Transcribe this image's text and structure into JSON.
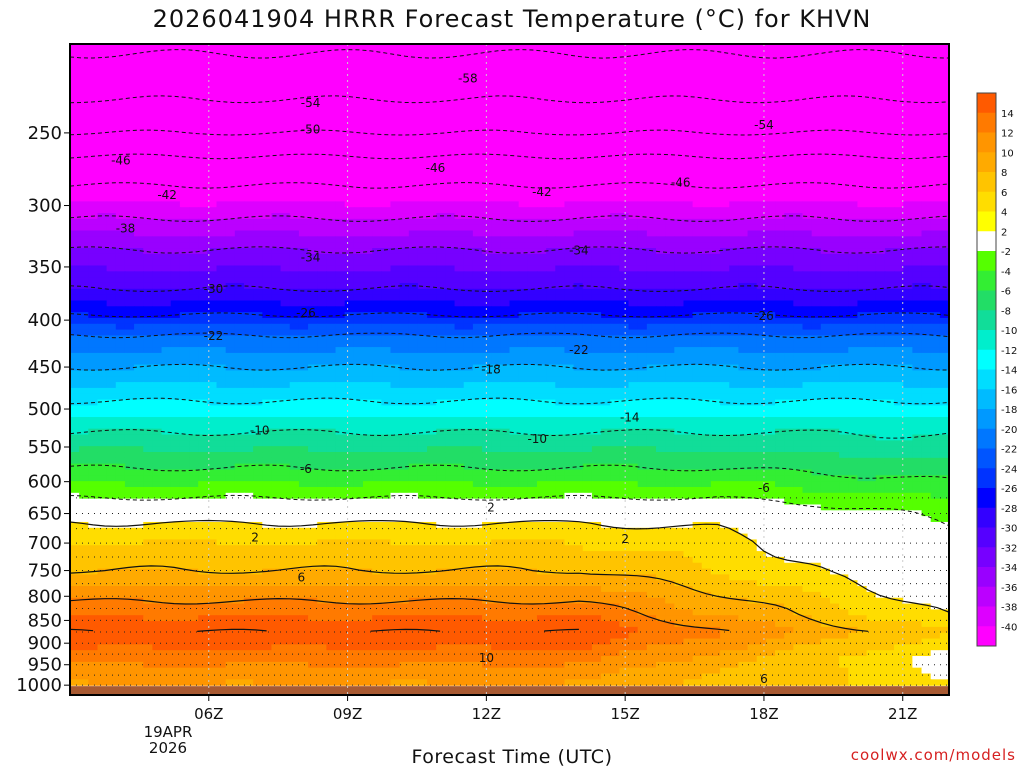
{
  "chart_data": {
    "type": "heatmap",
    "title": "2026041904 HRRR Forecast Temperature (°C) for KHVN",
    "xlabel": "Forecast Time (UTC)",
    "credit": "coolwx.com/models",
    "date_lines": [
      "19APR",
      "2026"
    ],
    "x_ticks": [
      "06Z",
      "09Z",
      "12Z",
      "15Z",
      "18Z",
      "21Z"
    ],
    "x_range_hours": [
      3,
      22
    ],
    "y_ticks": [
      250,
      300,
      350,
      400,
      450,
      500,
      550,
      600,
      650,
      700,
      750,
      800,
      850,
      900,
      950,
      1000
    ],
    "y_range_hpa": [
      200,
      1025
    ],
    "levels_hpa": [
      200,
      225,
      250,
      275,
      300,
      325,
      350,
      375,
      400,
      425,
      450,
      475,
      500,
      525,
      550,
      575,
      600,
      625,
      650,
      675,
      700,
      725,
      750,
      775,
      800,
      825,
      850,
      875,
      900,
      925,
      950,
      975,
      1000
    ],
    "colorbar_ticks": [
      14,
      12,
      10,
      8,
      6,
      4,
      2,
      -2,
      -4,
      -6,
      -8,
      -10,
      -12,
      -14,
      -16,
      -18,
      -20,
      -22,
      -24,
      -26,
      -28,
      -30,
      -32,
      -34,
      -36,
      -38,
      -40
    ],
    "colorbar_colors": [
      "#ff5a00",
      "#ff7a00",
      "#ff9500",
      "#ffaa00",
      "#ffc400",
      "#ffdd00",
      "#ffff00",
      "#ffffff",
      "#55ff00",
      "#33ee33",
      "#22dd66",
      "#11dd99",
      "#00eecc",
      "#00ffff",
      "#00ddff",
      "#00bbff",
      "#0099ff",
      "#0077ff",
      "#0055ff",
      "#0033ff",
      "#0000ff",
      "#3300ff",
      "#5500ff",
      "#7700ff",
      "#9900ff",
      "#bb00ff",
      "#dd00ff",
      "#ff00ff"
    ],
    "profile_06Z": [
      {
        "p": 230,
        "t": -54
      },
      {
        "p": 250,
        "t": -50
      },
      {
        "p": 265,
        "t": -46
      },
      {
        "p": 285,
        "t": -42
      },
      {
        "p": 310,
        "t": -38
      },
      {
        "p": 335,
        "t": -34
      },
      {
        "p": 370,
        "t": -30
      },
      {
        "p": 395,
        "t": -26
      },
      {
        "p": 415,
        "t": -22
      },
      {
        "p": 450,
        "t": -18
      },
      {
        "p": 490,
        "t": -14
      },
      {
        "p": 530,
        "t": -10
      },
      {
        "p": 580,
        "t": -6
      },
      {
        "p": 625,
        "t": -2
      },
      {
        "p": 665,
        "t": 2
      },
      {
        "p": 700,
        "t": 4
      },
      {
        "p": 750,
        "t": 6
      },
      {
        "p": 810,
        "t": 10
      },
      {
        "p": 875,
        "t": 14
      },
      {
        "p": 950,
        "t": 10
      },
      {
        "p": 1000,
        "t": 8
      }
    ],
    "contour_labels": [
      {
        "text": "-58",
        "hour": 11.6,
        "p": 218
      },
      {
        "text": "-54",
        "hour": 8.2,
        "p": 232
      },
      {
        "text": "-54",
        "hour": 18.0,
        "p": 245
      },
      {
        "text": "-50",
        "hour": 8.2,
        "p": 248
      },
      {
        "text": "-46",
        "hour": 4.1,
        "p": 268
      },
      {
        "text": "-46",
        "hour": 10.9,
        "p": 273
      },
      {
        "text": "-46",
        "hour": 16.2,
        "p": 283
      },
      {
        "text": "-42",
        "hour": 5.1,
        "p": 292
      },
      {
        "text": "-42",
        "hour": 13.2,
        "p": 290
      },
      {
        "text": "-38",
        "hour": 4.2,
        "p": 318
      },
      {
        "text": "-34",
        "hour": 8.2,
        "p": 342
      },
      {
        "text": "-34",
        "hour": 14.0,
        "p": 336
      },
      {
        "text": "-30",
        "hour": 6.1,
        "p": 370
      },
      {
        "text": "-26",
        "hour": 8.1,
        "p": 393
      },
      {
        "text": "-26",
        "hour": 18.0,
        "p": 396
      },
      {
        "text": "-22",
        "hour": 6.1,
        "p": 416
      },
      {
        "text": "-22",
        "hour": 14.0,
        "p": 431
      },
      {
        "text": "-18",
        "hour": 12.1,
        "p": 453
      },
      {
        "text": "-14",
        "hour": 15.1,
        "p": 511
      },
      {
        "text": "-10",
        "hour": 7.1,
        "p": 528
      },
      {
        "text": "-10",
        "hour": 13.1,
        "p": 539
      },
      {
        "text": "-6",
        "hour": 8.1,
        "p": 581
      },
      {
        "text": "-6",
        "hour": 18.0,
        "p": 610
      },
      {
        "text": "2",
        "hour": 12.1,
        "p": 640
      },
      {
        "text": "2",
        "hour": 7.0,
        "p": 690
      },
      {
        "text": "2",
        "hour": 15.0,
        "p": 693
      },
      {
        "text": "6",
        "hour": 8.0,
        "p": 763
      },
      {
        "text": "10",
        "hour": 12.0,
        "p": 934
      },
      {
        "text": "6",
        "hour": 18.0,
        "p": 985
      }
    ]
  }
}
